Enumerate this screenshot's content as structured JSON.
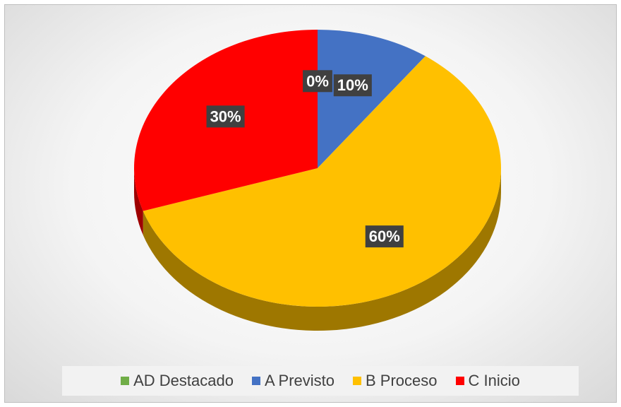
{
  "chart_data": {
    "type": "pie",
    "categories": [
      "AD Destacado",
      "A Previsto",
      "B Proceso",
      "C Inicio"
    ],
    "values": [
      0,
      10,
      60,
      30
    ],
    "value_labels": [
      "0%",
      "10%",
      "60%",
      "30%"
    ],
    "colors": [
      "#70ad47",
      "#4472c4",
      "#ffc000",
      "#ff0000"
    ],
    "legend": "bottom"
  }
}
